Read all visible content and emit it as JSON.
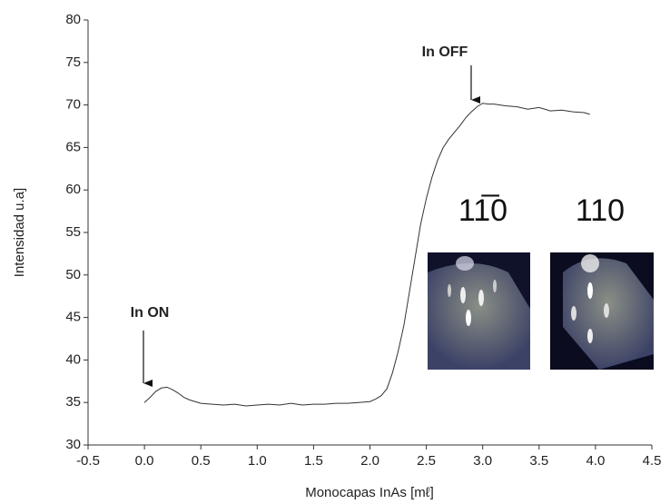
{
  "chart_data": {
    "type": "line",
    "x_label": "Monocapas InAs [mℓ]",
    "y_label": "Intensidad u.a]",
    "annotations": [
      "In  ON",
      "In  OFF",
      "11̅0",
      "110"
    ],
    "xlim": [
      -0.5,
      4.5
    ],
    "xticks": [
      -0.5,
      {
        "value": 0,
        "label": "0.0"
      },
      0.5,
      {
        "value": 1,
        "label": "1.0"
      },
      1.5,
      {
        "value": 2,
        "label": "2.0"
      },
      2.5,
      {
        "value": 3,
        "label": "3.0"
      },
      3.5,
      {
        "value": 4,
        "label": "4.0"
      },
      4.5
    ],
    "ylim": [
      30,
      80
    ],
    "yticks": [
      30,
      35,
      40,
      45,
      50,
      55,
      60,
      65,
      70,
      75,
      80
    ],
    "series": [
      {
        "color": "#333333",
        "x": [
          0,
          0.05,
          0.1,
          0.15,
          0.2,
          0.25,
          0.3,
          0.35,
          0.4,
          0.5,
          0.6,
          0.7,
          0.8,
          0.9,
          1.0,
          1.1,
          1.2,
          1.3,
          1.4,
          1.5,
          1.6,
          1.7,
          1.8,
          1.9,
          2.0,
          2.05,
          2.1,
          2.15,
          2.2,
          2.25,
          2.3,
          2.35,
          2.4,
          2.45,
          2.5,
          2.55,
          2.6,
          2.65,
          2.7,
          2.75,
          2.8,
          2.85,
          2.9,
          2.95,
          3.0,
          3.05,
          3.1,
          3.2,
          3.3,
          3.4,
          3.5,
          3.6,
          3.7,
          3.8,
          3.9,
          3.95
        ],
        "values": [
          35,
          35.6,
          36.3,
          36.7,
          36.8,
          36.5,
          36.1,
          35.6,
          35.3,
          34.9,
          34.8,
          34.7,
          34.8,
          34.6,
          34.7,
          34.8,
          34.7,
          34.9,
          34.7,
          34.8,
          34.8,
          34.9,
          34.9,
          35,
          35.1,
          35.4,
          35.8,
          36.6,
          38.5,
          41,
          44,
          48,
          52,
          56,
          59,
          61.5,
          63.5,
          65,
          66,
          66.8,
          67.6,
          68.5,
          69.2,
          69.8,
          70.2,
          70.1,
          70.1,
          69.9,
          69.8,
          69.5,
          69.7,
          69.3,
          69.4,
          69.2,
          69.1,
          68.9
        ]
      }
    ]
  }
}
